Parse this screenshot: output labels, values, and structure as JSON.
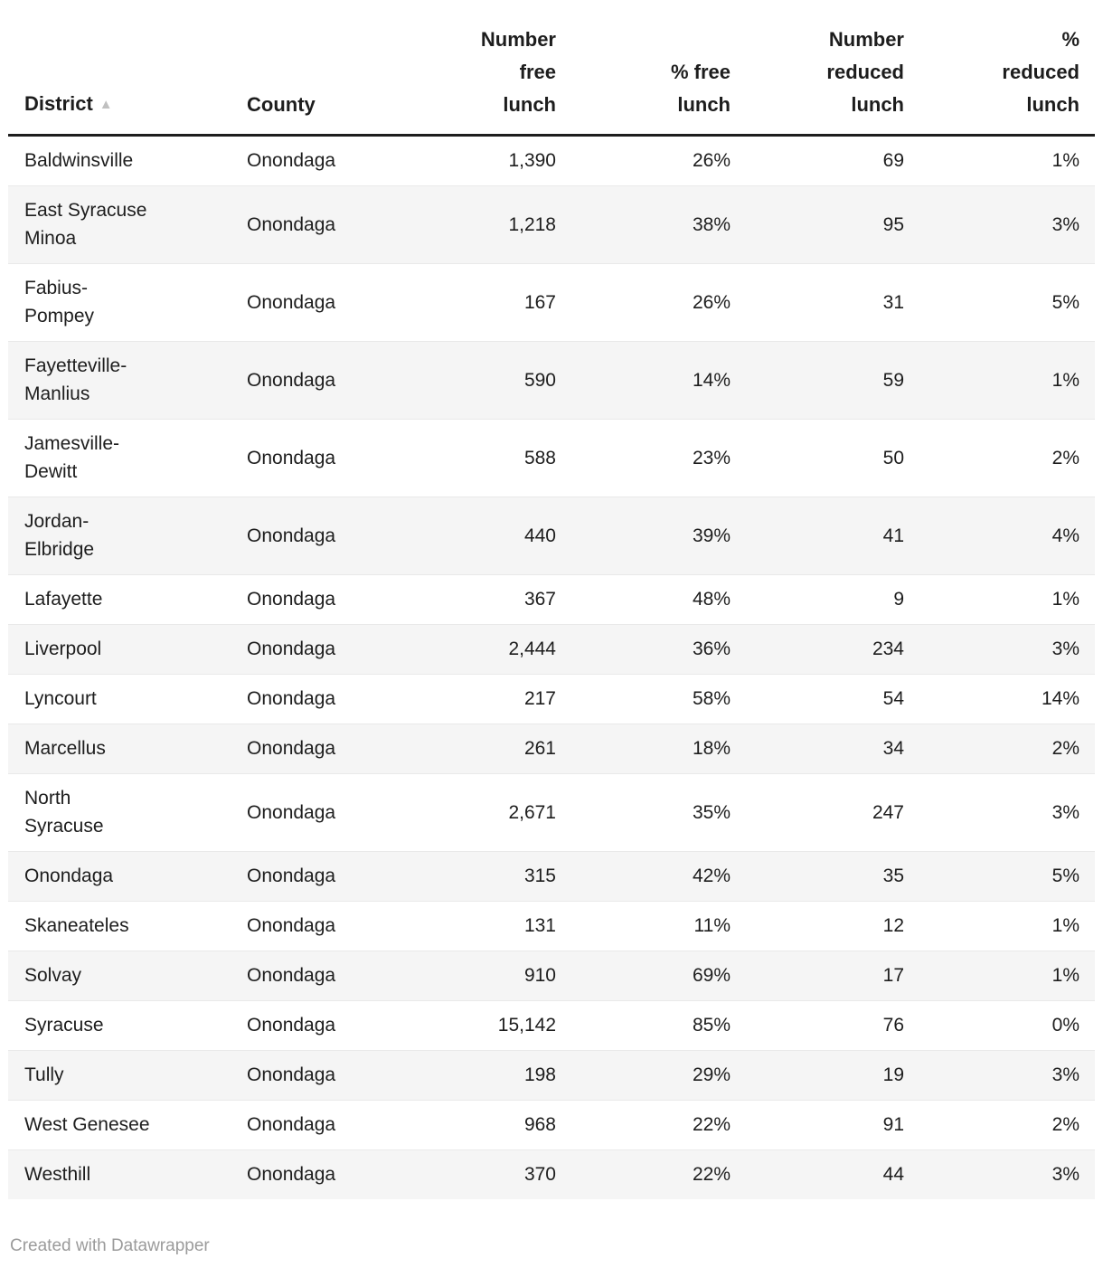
{
  "table": {
    "sort_icon": "▲",
    "sorted_column": "District",
    "sort_direction": "ascending",
    "columns": [
      {
        "key": "district",
        "label": "District",
        "align": "left",
        "sorted": true
      },
      {
        "key": "county",
        "label": "County",
        "align": "left",
        "sorted": false
      },
      {
        "key": "number_free_lunch",
        "label": "Number\nfree\nlunch",
        "align": "right",
        "sorted": false
      },
      {
        "key": "pct_free_lunch",
        "label": "% free\nlunch",
        "align": "right",
        "sorted": false
      },
      {
        "key": "number_reduced_lunch",
        "label": "Number\nreduced\nlunch",
        "align": "right",
        "sorted": false
      },
      {
        "key": "pct_reduced_lunch",
        "label": "%\nreduced\nlunch",
        "align": "right",
        "sorted": false
      }
    ],
    "rows": [
      [
        "Baldwinsville",
        "Onondaga",
        "1,390",
        "26%",
        "69",
        "1%"
      ],
      [
        "East Syracuse\nMinoa",
        "Onondaga",
        "1,218",
        "38%",
        "95",
        "3%"
      ],
      [
        "Fabius-\nPompey",
        "Onondaga",
        "167",
        "26%",
        "31",
        "5%"
      ],
      [
        "Fayetteville-\nManlius",
        "Onondaga",
        "590",
        "14%",
        "59",
        "1%"
      ],
      [
        "Jamesville-\nDewitt",
        "Onondaga",
        "588",
        "23%",
        "50",
        "2%"
      ],
      [
        "Jordan-\nElbridge",
        "Onondaga",
        "440",
        "39%",
        "41",
        "4%"
      ],
      [
        "Lafayette",
        "Onondaga",
        "367",
        "48%",
        "9",
        "1%"
      ],
      [
        "Liverpool",
        "Onondaga",
        "2,444",
        "36%",
        "234",
        "3%"
      ],
      [
        "Lyncourt",
        "Onondaga",
        "217",
        "58%",
        "54",
        "14%"
      ],
      [
        "Marcellus",
        "Onondaga",
        "261",
        "18%",
        "34",
        "2%"
      ],
      [
        "North\nSyracuse",
        "Onondaga",
        "2,671",
        "35%",
        "247",
        "3%"
      ],
      [
        "Onondaga",
        "Onondaga",
        "315",
        "42%",
        "35",
        "5%"
      ],
      [
        "Skaneateles",
        "Onondaga",
        "131",
        "11%",
        "12",
        "1%"
      ],
      [
        "Solvay",
        "Onondaga",
        "910",
        "69%",
        "17",
        "1%"
      ],
      [
        "Syracuse",
        "Onondaga",
        "15,142",
        "85%",
        "76",
        "0%"
      ],
      [
        "Tully",
        "Onondaga",
        "198",
        "29%",
        "19",
        "3%"
      ],
      [
        "West Genesee",
        "Onondaga",
        "968",
        "22%",
        "91",
        "2%"
      ],
      [
        "Westhill",
        "Onondaga",
        "370",
        "22%",
        "44",
        "3%"
      ]
    ]
  },
  "footer": {
    "credit": "Created with Datawrapper"
  },
  "colors": {
    "text": "#1d1d1d",
    "stripe": "#f5f5f5",
    "separator": "#e9e9e9",
    "header_border": "#1d1d1d",
    "sort_arrow": "#c0c0c0",
    "footer_text": "#9b9b9b"
  }
}
